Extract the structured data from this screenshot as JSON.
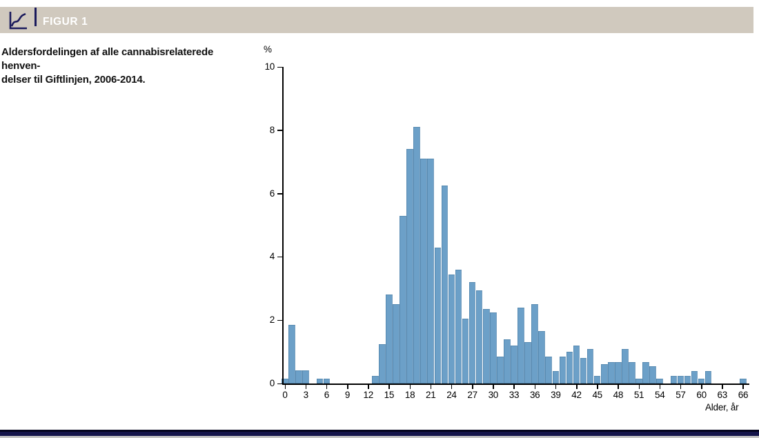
{
  "header": {
    "figure_label": "FIGUR 1",
    "icon": "line-chart-icon",
    "bar_color": "#d0c9be",
    "accent_navy": "#1a1a5c"
  },
  "caption": {
    "line1": "Aldersfordelingen af alle cannabisrelaterede henven-",
    "line2": "delser til Giftlinjen, 2006-2014."
  },
  "chart_data": {
    "type": "bar",
    "title": "Aldersfordelingen af alle cannabisrelaterede henvendelser til Giftlinjen, 2006-2014",
    "ylabel": "%",
    "xlabel": "Alder, år",
    "ylim": [
      0,
      10
    ],
    "yticks": [
      0,
      2,
      4,
      6,
      8,
      10
    ],
    "xticks": [
      0,
      3,
      6,
      9,
      12,
      15,
      18,
      21,
      24,
      27,
      30,
      33,
      36,
      39,
      42,
      45,
      48,
      51,
      54,
      57,
      60,
      63,
      66
    ],
    "bin_width_years": 1,
    "age_start": 0,
    "bar_color": "#6ca0c8",
    "grid": false,
    "legend": "none",
    "values": [
      0.15,
      1.85,
      0.42,
      0.42,
      0,
      0.15,
      0.15,
      0,
      0,
      0,
      0,
      0,
      0,
      0.25,
      1.25,
      2.8,
      2.5,
      5.3,
      7.4,
      8.1,
      7.1,
      7.1,
      4.3,
      6.25,
      3.45,
      3.6,
      2.05,
      3.2,
      2.95,
      2.35,
      2.25,
      0.85,
      1.4,
      1.2,
      2.4,
      1.3,
      2.5,
      1.65,
      0.85,
      0.4,
      0.85,
      1.0,
      1.2,
      0.8,
      1.1,
      0.25,
      0.6,
      0.68,
      0.68,
      1.1,
      0.68,
      0.15,
      0.68,
      0.55,
      0.15,
      0,
      0.25,
      0.25,
      0.25,
      0.4,
      0.15,
      0.4,
      0,
      0,
      0,
      0,
      0.15
    ]
  },
  "footer": {
    "rule_color": "#14144a"
  }
}
